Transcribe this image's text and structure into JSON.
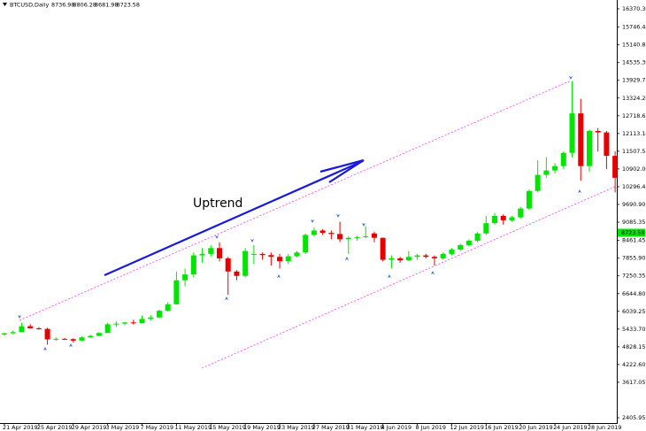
{
  "chart_data": {
    "type": "candlestick",
    "symbol": "BTCUSD,Daily",
    "quote": [
      8736.98,
      8806.28,
      8681.98,
      8723.58
    ],
    "annotation": "Uptrend",
    "last_price": 8723.58,
    "up_color": "#00e600",
    "down_color": "#e60000",
    "categories": [
      "21 Apr 2019",
      null,
      null,
      null,
      "25 Apr 2019",
      null,
      null,
      null,
      "29 Apr 2019",
      null,
      null,
      null,
      "3 May 2019",
      null,
      null,
      null,
      "7 May 2019",
      null,
      null,
      null,
      "11 May 2019",
      null,
      null,
      null,
      "15 May 2019",
      null,
      null,
      null,
      "19 May 2019",
      null,
      null,
      null,
      "23 May 2019",
      null,
      null,
      null,
      "27 May 2019",
      null,
      null,
      null,
      "31 May 2019",
      null,
      null,
      null,
      "4 Jun 2019",
      null,
      null,
      null,
      "8 Jun 2019",
      null,
      null,
      null,
      "12 Jun 2019",
      null,
      null,
      null,
      "16 Jun 2019",
      null,
      null,
      null,
      "20 Jun 2019",
      null,
      null,
      null,
      "24 Jun 2019",
      null,
      null,
      null,
      "28 Jun 2019",
      null,
      null,
      null
    ],
    "open": [
      5250,
      5290,
      5330,
      5530,
      5460,
      5440,
      5080,
      5100,
      5090,
      5040,
      5150,
      5200,
      5300,
      5600,
      5620,
      5660,
      5640,
      5780,
      5830,
      6060,
      6280,
      7100,
      7300,
      7950,
      8000,
      8200,
      7850,
      7400,
      7250,
      7980,
      8000,
      7960,
      7900,
      7750,
      7920,
      8050,
      8650,
      8800,
      8720,
      8680,
      8500,
      8550,
      8570,
      8700,
      8550,
      7800,
      7850,
      7780,
      7900,
      7950,
      7900,
      7850,
      8000,
      8150,
      8300,
      8450,
      8700,
      9050,
      9300,
      9150,
      9250,
      9550,
      10150,
      10700,
      10850,
      11000,
      11450,
      12800,
      11000,
      12200,
      12150,
      11350
    ],
    "high": [
      5310,
      5380,
      5650,
      5600,
      5500,
      5480,
      5150,
      5130,
      5120,
      5180,
      5230,
      5330,
      5650,
      5700,
      5680,
      5750,
      5900,
      5910,
      6100,
      6350,
      7400,
      7500,
      8050,
      8200,
      8300,
      8400,
      7900,
      7450,
      8200,
      8300,
      8050,
      8050,
      8000,
      8000,
      8100,
      8700,
      8900,
      8850,
      8800,
      9100,
      8600,
      8620,
      8950,
      8760,
      8560,
      7950,
      7900,
      8100,
      8000,
      8000,
      7950,
      8050,
      8200,
      8350,
      8500,
      8750,
      9300,
      9400,
      9350,
      9300,
      9600,
      10200,
      11200,
      11300,
      11100,
      11500,
      13900,
      13300,
      12250,
      12300,
      12200,
      11500
    ],
    "low": [
      5200,
      5270,
      5320,
      5450,
      5410,
      4900,
      5030,
      5060,
      4980,
      5020,
      5130,
      5190,
      5290,
      5500,
      5560,
      5590,
      5630,
      5720,
      5820,
      6030,
      6270,
      6900,
      7200,
      7700,
      7900,
      7750,
      6600,
      7100,
      7200,
      7650,
      7800,
      7600,
      7500,
      7650,
      7880,
      8000,
      8600,
      8650,
      8500,
      8400,
      8000,
      8450,
      8540,
      8400,
      7750,
      7500,
      7700,
      7750,
      7800,
      7850,
      7600,
      7800,
      7950,
      8100,
      8250,
      8400,
      8650,
      9000,
      9000,
      9100,
      9200,
      9500,
      10100,
      10600,
      10750,
      10900,
      11300,
      10500,
      10800,
      11500,
      10900,
      10100
    ],
    "close": [
      5290,
      5330,
      5530,
      5460,
      5440,
      5080,
      5100,
      5090,
      5040,
      5150,
      5200,
      5300,
      5600,
      5620,
      5660,
      5640,
      5780,
      5830,
      6060,
      6280,
      7100,
      7300,
      7950,
      8000,
      8200,
      7850,
      7400,
      7250,
      8100,
      8000,
      7960,
      7900,
      7750,
      7920,
      8050,
      8650,
      8800,
      8720,
      8680,
      8500,
      8550,
      8570,
      8600,
      8550,
      7800,
      7850,
      7780,
      7900,
      7950,
      7900,
      7850,
      8000,
      8150,
      8300,
      8450,
      8700,
      9050,
      9300,
      9150,
      9250,
      9550,
      10150,
      10700,
      10850,
      11000,
      11450,
      12800,
      11000,
      12200,
      12150,
      11350,
      10600
    ],
    "ylim": [
      2224.6,
      16672.6
    ],
    "yticks": [
      {
        "value": 16370.3,
        "label": "16370.30"
      },
      {
        "value": 15746.4,
        "label": "15746.40"
      },
      15140.85,
      {
        "value": 14535.3,
        "label": "14535.30"
      },
      13929.75,
      {
        "value": 13324.2,
        "label": "13324.20"
      },
      12718.65,
      {
        "value": 12113.1,
        "label": "12113.10"
      },
      11507.55,
      {
        "value": 10902,
        "label": "10902.00"
      },
      10296.45,
      {
        "value": 9690.9,
        "label": "9690.90"
      },
      9085.35,
      8461.45,
      {
        "value": 7855.9,
        "label": "7855.90"
      },
      7250.35,
      {
        "value": 6644.8,
        "label": "6644.80"
      },
      6039.25,
      {
        "value": 5433.7,
        "label": "5433.70"
      },
      4828.15,
      {
        "value": 4222.6,
        "label": "4222.60"
      },
      3617.05,
      2405.95
    ]
  }
}
